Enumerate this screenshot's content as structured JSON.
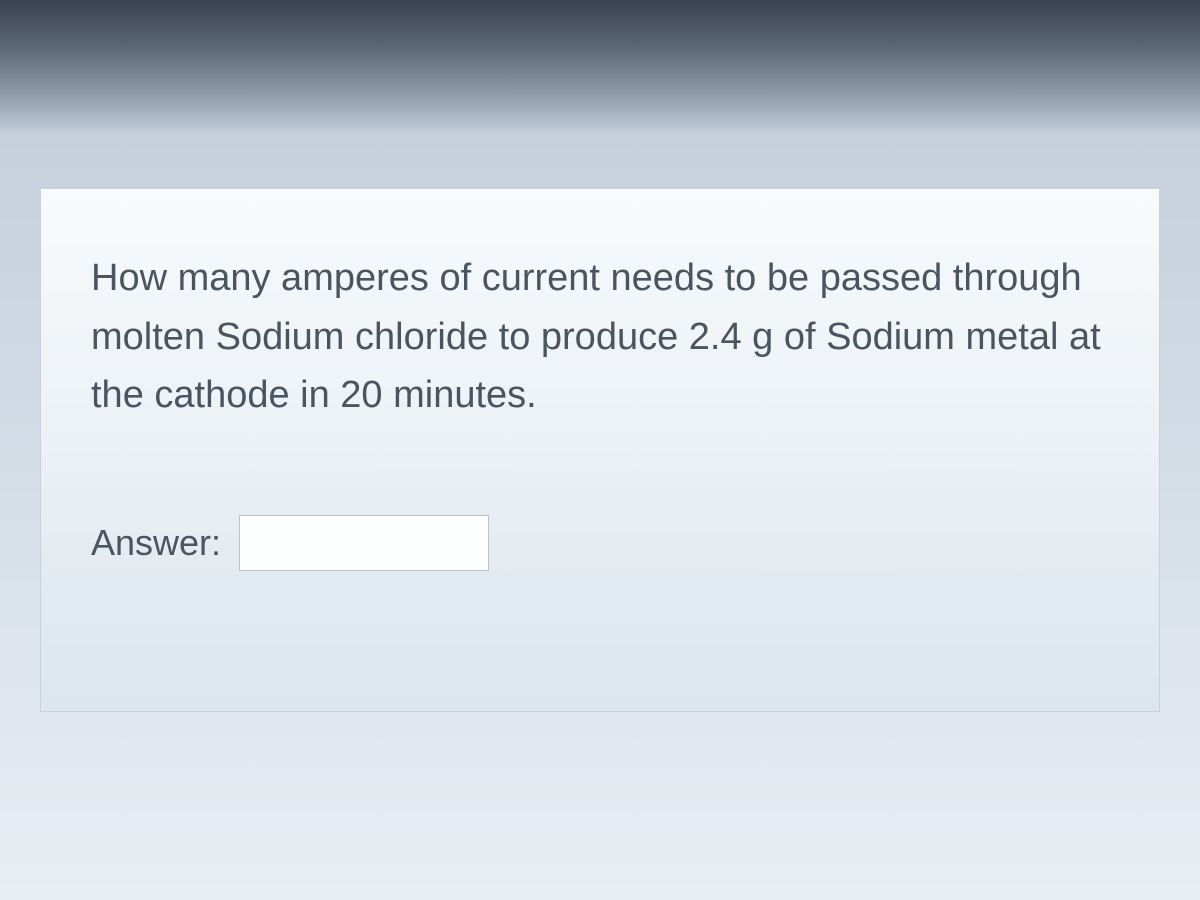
{
  "question": {
    "text": "How many amperes of current needs to be passed through molten Sodium chloride to produce 2.4 g of Sodium metal at the cathode in 20 minutes.",
    "text_color": "#4a5560",
    "font_size_pt": 38
  },
  "answer": {
    "label": "Answer:",
    "value": "",
    "placeholder": "",
    "label_color": "#4a5560",
    "input_border_color": "#b8c2ca",
    "input_bg_color": "#fdfefe"
  },
  "card": {
    "bg_gradient_top": "#f8fafb",
    "bg_gradient_bottom": "#dce6ee",
    "border_color": "#c8d2da"
  }
}
